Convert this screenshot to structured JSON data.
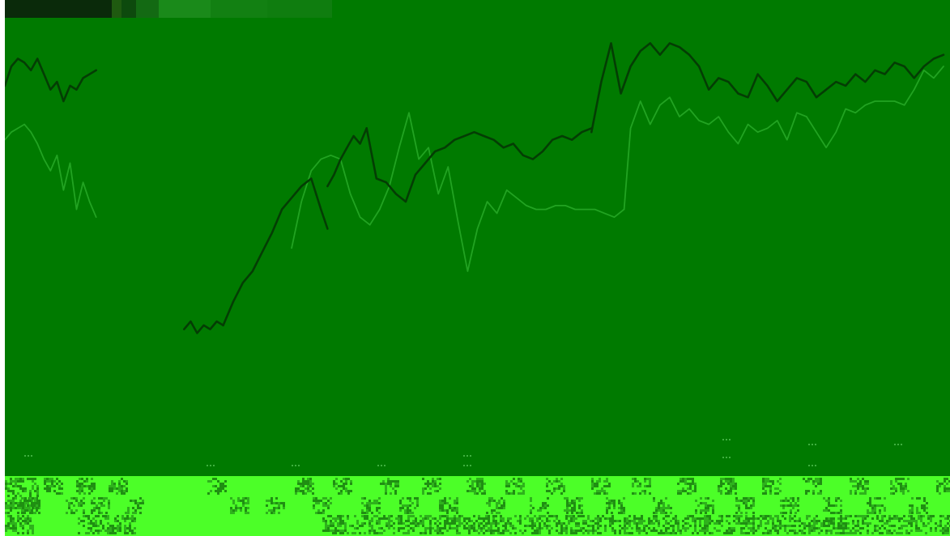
{
  "colors": {
    "background": "#007a00",
    "left_edge": "#ffffff",
    "band_light": "#4cff28",
    "band_dark": "#1f8f12",
    "band_mid": "#2eb21c",
    "series_dark": "#043d04",
    "series_light": "#22a322"
  },
  "chart_data": {
    "type": "line",
    "title": "",
    "xlabel": "",
    "ylabel": "",
    "grid": false,
    "legend": "none",
    "series": [
      {
        "color": "#043d04",
        "segments": [
          {
            "x": [
              0,
              2,
              4,
              6,
              8,
              10,
              12,
              14,
              16,
              18,
              20,
              22,
              24,
              26,
              28
            ],
            "y": [
              92,
              97,
              99,
              98,
              96,
              99,
              95,
              91,
              93,
              88,
              92,
              91,
              94,
              95,
              96
            ]
          },
          {
            "x": [
              55,
              57,
              59,
              61,
              63,
              65,
              67
            ],
            "y": [
              29,
              31,
              28,
              30,
              29,
              31,
              30
            ]
          },
          {
            "x": [
              67,
              70,
              73,
              76,
              79,
              82,
              85,
              88,
              91,
              94,
              97,
              99
            ],
            "y": [
              30,
              36,
              41,
              44,
              49,
              54,
              60,
              63,
              66,
              68,
              60,
              55
            ]
          },
          {
            "x": [
              99,
              101,
              103,
              105,
              107,
              109,
              111
            ],
            "y": [
              66,
              69,
              73,
              76,
              79,
              77,
              81
            ]
          },
          {
            "x": [
              111,
              114,
              117,
              120,
              123,
              126,
              129,
              132,
              135,
              138,
              141,
              144,
              147,
              150,
              153,
              156,
              159,
              162,
              165,
              168,
              171,
              174,
              177,
              180
            ],
            "y": [
              81,
              68,
              67,
              64,
              62,
              69,
              72,
              75,
              76,
              78,
              79,
              80,
              79,
              78,
              76,
              77,
              74,
              73,
              75,
              78,
              79,
              78,
              80,
              81
            ]
          },
          {
            "x": [
              180,
              183,
              186,
              189,
              192,
              195,
              198,
              201,
              204,
              207,
              210,
              213,
              216,
              219,
              222,
              225,
              228,
              231,
              234,
              237,
              240,
              243,
              246,
              249,
              252,
              255,
              258,
              261,
              264,
              267,
              270,
              273,
              276,
              279,
              282,
              285,
              288
            ],
            "y": [
              80,
              93,
              103,
              90,
              97,
              101,
              103,
              100,
              103,
              102,
              100,
              97,
              91,
              94,
              93,
              90,
              89,
              95,
              92,
              88,
              91,
              94,
              93,
              89,
              91,
              93,
              92,
              95,
              93,
              96,
              95,
              98,
              97,
              94,
              97,
              99,
              100
            ]
          }
        ]
      },
      {
        "color": "#22a322",
        "segments": [
          {
            "x": [
              0,
              2,
              4,
              6,
              8,
              10,
              12,
              14,
              16,
              18,
              20,
              22,
              24,
              26,
              28
            ],
            "y": [
              78,
              80,
              81,
              82,
              80,
              77,
              73,
              70,
              74,
              65,
              72,
              60,
              67,
              62,
              58
            ]
          },
          {
            "x": [
              88,
              91,
              94,
              97,
              100,
              103,
              106,
              109,
              112
            ],
            "y": [
              50,
              62,
              70,
              73,
              74,
              73,
              64,
              58,
              56
            ]
          },
          {
            "x": [
              112,
              115,
              118,
              121,
              124,
              127,
              130,
              133,
              136,
              139,
              142,
              145,
              148,
              151,
              154,
              157,
              160,
              163,
              166,
              169,
              172,
              175,
              178,
              181,
              184,
              187,
              190
            ],
            "y": [
              56,
              60,
              66,
              76,
              85,
              73,
              76,
              64,
              71,
              57,
              44,
              55,
              62,
              59,
              65,
              63,
              61,
              60,
              60,
              61,
              61,
              60,
              60,
              60,
              59,
              58,
              60
            ]
          },
          {
            "x": [
              190,
              192,
              195,
              198,
              201,
              204,
              207,
              210,
              213,
              216,
              219,
              222,
              225,
              228,
              231,
              234,
              237,
              240,
              243,
              246,
              249,
              252,
              255,
              258,
              261,
              264,
              267,
              270,
              273,
              276,
              279,
              282,
              285,
              288
            ],
            "y": [
              60,
              81,
              88,
              82,
              87,
              89,
              84,
              86,
              83,
              82,
              84,
              80,
              77,
              82,
              80,
              81,
              83,
              78,
              85,
              84,
              80,
              76,
              80,
              86,
              85,
              87,
              88,
              88,
              88,
              87,
              91,
              96,
              94,
              97
            ]
          }
        ]
      }
    ],
    "xlim": [
      0,
      290
    ],
    "ylim": [
      0,
      110
    ]
  }
}
